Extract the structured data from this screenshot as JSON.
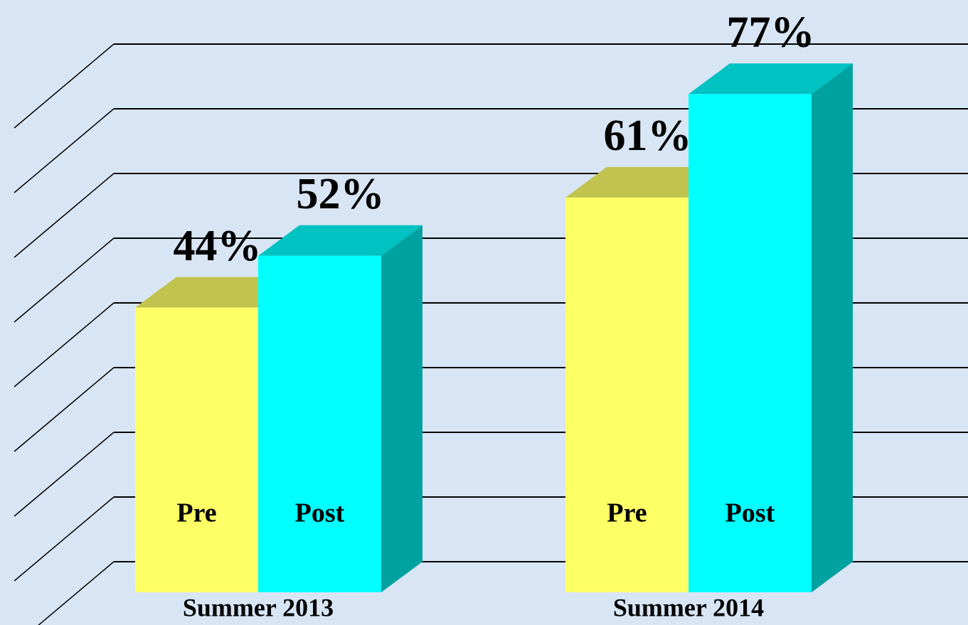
{
  "chart_data": {
    "type": "bar3d",
    "categories": [
      "Summer 2013",
      "Summer 2014"
    ],
    "series": [
      {
        "name": "Pre",
        "color": "#ffff66",
        "values": [
          44,
          61
        ],
        "value_labels": [
          "44%",
          "61%"
        ]
      },
      {
        "name": "Post",
        "color": "#00ffff",
        "values": [
          52,
          77
        ],
        "value_labels": [
          "52%",
          "77%"
        ]
      }
    ],
    "ylim": [
      0,
      90
    ],
    "yticks": [
      0,
      10,
      20,
      30,
      40,
      50,
      60,
      70,
      80
    ],
    "grid": true
  }
}
